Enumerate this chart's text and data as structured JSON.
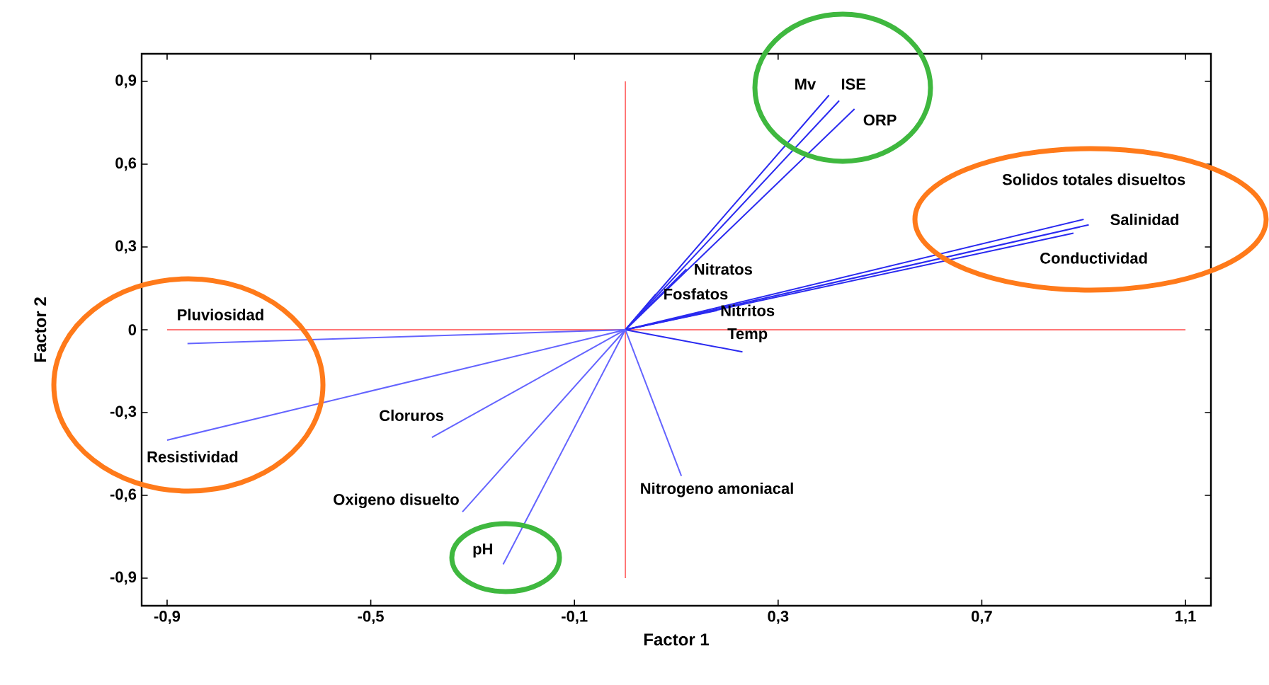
{
  "chart_data": {
    "type": "line",
    "xlabel": "Factor 1",
    "ylabel": "Factor 2",
    "xlim": [
      -0.95,
      1.15
    ],
    "ylim": [
      -1.0,
      1.0
    ],
    "xticks": [
      {
        "value": -0.9,
        "label": "-0,9"
      },
      {
        "value": -0.5,
        "label": "-0,5"
      },
      {
        "value": -0.1,
        "label": "-0,1"
      },
      {
        "value": 0.3,
        "label": "0,3"
      },
      {
        "value": 0.7,
        "label": "0,7"
      },
      {
        "value": 1.1,
        "label": "1,1"
      }
    ],
    "yticks": [
      {
        "value": -0.9,
        "label": "-0,9"
      },
      {
        "value": -0.6,
        "label": "-0,6"
      },
      {
        "value": -0.3,
        "label": "-0,3"
      },
      0,
      {
        "value": 0.3,
        "label": "0,3"
      },
      {
        "value": 0.6,
        "label": "0,6"
      },
      {
        "value": 0.9,
        "label": "0,9"
      }
    ],
    "ref_lines": [
      {
        "axis": "x",
        "value": 0,
        "color": "#ff6060"
      },
      {
        "axis": "y",
        "value": 0,
        "color": "#ff4848"
      }
    ],
    "series": [
      {
        "name": "Mv",
        "color": "#2a2af0",
        "x": [
          0,
          0.4
        ],
        "values": [
          0,
          0.85
        ]
      },
      {
        "name": "ISE",
        "color": "#2a2af0",
        "x": [
          0,
          0.42
        ],
        "values": [
          0,
          0.83
        ]
      },
      {
        "name": "ORP",
        "color": "#2a2af0",
        "x": [
          0,
          0.45
        ],
        "values": [
          0,
          0.8
        ]
      },
      {
        "name": "Solidos totales disueltos",
        "color": "#2a2af0",
        "x": [
          0,
          0.9
        ],
        "values": [
          0,
          0.4
        ]
      },
      {
        "name": "Salinidad",
        "color": "#2a2af0",
        "x": [
          0,
          0.91
        ],
        "values": [
          0,
          0.38
        ]
      },
      {
        "name": "Conductividad",
        "color": "#2a2af0",
        "x": [
          0,
          0.88
        ],
        "values": [
          0,
          0.35
        ]
      },
      {
        "name": "Nitratos",
        "color": "#2a2af0",
        "x": [
          0,
          0.12
        ],
        "values": [
          0,
          0.22
        ]
      },
      {
        "name": "Fosfatos",
        "color": "#2a2af0",
        "x": [
          0,
          0.06
        ],
        "values": [
          0,
          0.13
        ]
      },
      {
        "name": "Nitritos",
        "color": "#2a2af0",
        "x": [
          0,
          0.18
        ],
        "values": [
          0,
          0.07
        ]
      },
      {
        "name": "Temp",
        "color": "#2a2af0",
        "x": [
          0,
          0.23
        ],
        "values": [
          0,
          -0.08
        ]
      },
      {
        "name": "Pluviosidad",
        "color": "#6464ff",
        "x": [
          0,
          -0.86
        ],
        "values": [
          0,
          -0.05
        ]
      },
      {
        "name": "Resistividad",
        "color": "#6464ff",
        "x": [
          0,
          -0.9
        ],
        "values": [
          0,
          -0.4
        ]
      },
      {
        "name": "Cloruros",
        "color": "#6464ff",
        "x": [
          0,
          -0.38
        ],
        "values": [
          0,
          -0.39
        ]
      },
      {
        "name": "Oxigeno disuelto",
        "color": "#6464ff",
        "x": [
          0,
          -0.32
        ],
        "values": [
          0,
          -0.66
        ]
      },
      {
        "name": "pH",
        "color": "#6464ff",
        "x": [
          0,
          -0.24
        ],
        "values": [
          0,
          -0.85
        ]
      },
      {
        "name": "Nitrogeno amoniacal",
        "color": "#6464ff",
        "x": [
          0,
          0.11
        ],
        "values": [
          0,
          -0.53
        ]
      }
    ]
  }
}
